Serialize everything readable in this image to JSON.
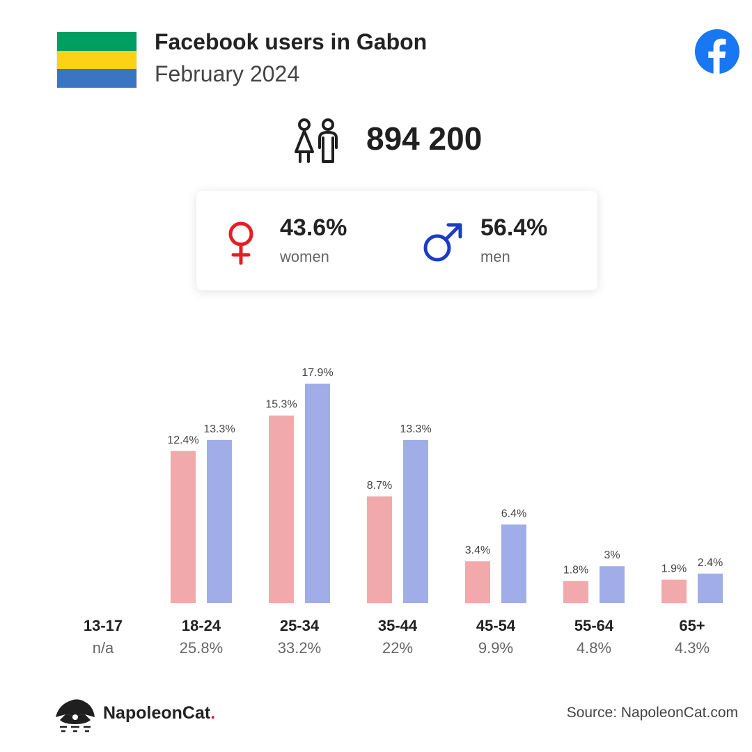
{
  "header": {
    "title": "Facebook users in Gabon",
    "subtitle": "February 2024",
    "flag_colors": [
      "#009e60",
      "#fcd116",
      "#3a75c4"
    ],
    "facebook_color": "#1877f2"
  },
  "summary": {
    "total_users": "894 200"
  },
  "gender": {
    "women": {
      "percent": "43.6%",
      "label": "women",
      "color": "#e31e24"
    },
    "men": {
      "percent": "56.4%",
      "label": "men",
      "color": "#1b3cc6"
    }
  },
  "chart_data": {
    "type": "bar",
    "categories": [
      "13-17",
      "18-24",
      "25-34",
      "35-44",
      "45-54",
      "55-64",
      "65+"
    ],
    "category_totals": [
      "n/a",
      "25.8%",
      "33.2%",
      "22%",
      "9.9%",
      "4.8%",
      "4.3%"
    ],
    "series": [
      {
        "key": "women",
        "color": "#f2a9ab",
        "values": [
          null,
          12.4,
          15.3,
          8.7,
          3.4,
          1.8,
          1.9
        ],
        "labels": [
          "",
          "12.4%",
          "15.3%",
          "8.7%",
          "3.4%",
          "1.8%",
          "1.9%"
        ]
      },
      {
        "key": "men",
        "color": "#a1ade8",
        "values": [
          null,
          13.3,
          17.9,
          13.3,
          6.4,
          3,
          2.4
        ],
        "labels": [
          "",
          "13.3%",
          "17.9%",
          "13.3%",
          "6.4%",
          "3%",
          "2.4%"
        ]
      }
    ],
    "ylim": [
      0,
      20
    ],
    "grid": false,
    "legend": "none"
  },
  "footer": {
    "brand_name": "NapoleonCat",
    "brand_dot": ".",
    "source": "Source: NapoleonCat.com"
  }
}
